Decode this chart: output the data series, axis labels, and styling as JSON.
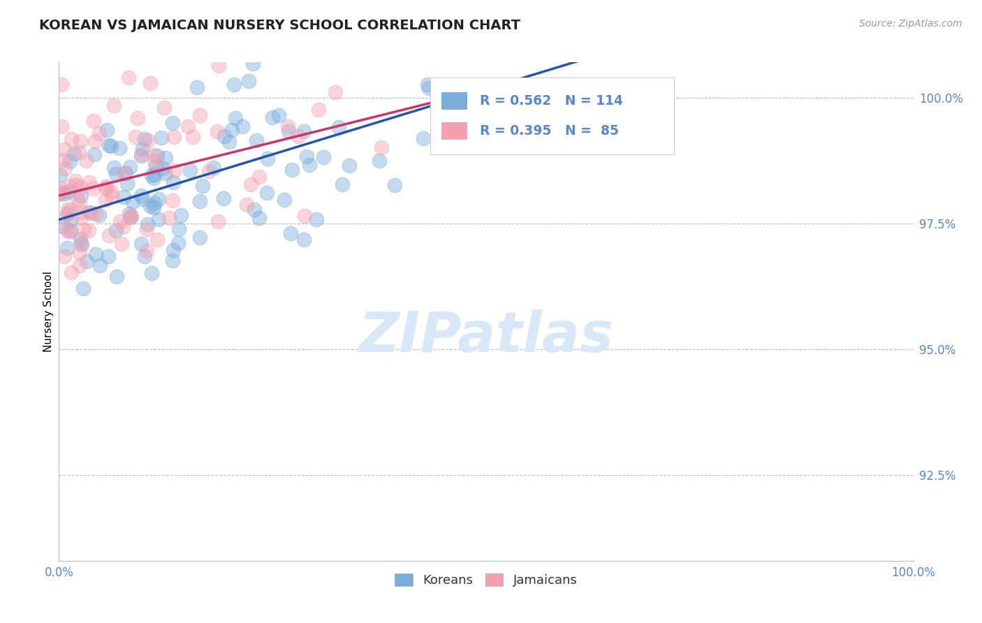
{
  "title": "KOREAN VS JAMAICAN NURSERY SCHOOL CORRELATION CHART",
  "source": "Source: ZipAtlas.com",
  "ylabel": "Nursery School",
  "xlim": [
    0.0,
    1.0
  ],
  "ylim": [
    0.908,
    1.007
  ],
  "yticks": [
    0.925,
    0.95,
    0.975,
    1.0
  ],
  "ytick_labels": [
    "92.5%",
    "95.0%",
    "97.5%",
    "100.0%"
  ],
  "xtick_labels": [
    "0.0%",
    "100.0%"
  ],
  "blue_color": "#7AADDC",
  "pink_color": "#F4A0B0",
  "blue_line_color": "#2255AA",
  "pink_line_color": "#CC3366",
  "R_korean": 0.562,
  "N_korean": 114,
  "R_jamaican": 0.395,
  "N_jamaican": 85,
  "watermark_zip": "ZIP",
  "watermark_atlas": "atlas",
  "legend_labels": [
    "Koreans",
    "Jamaicans"
  ],
  "title_fontsize": 14,
  "axis_color": "#5588CC",
  "grid_color": "#BBBBBB",
  "background_color": "#FFFFFF",
  "korean_seed": 7,
  "jamaican_seed": 13
}
